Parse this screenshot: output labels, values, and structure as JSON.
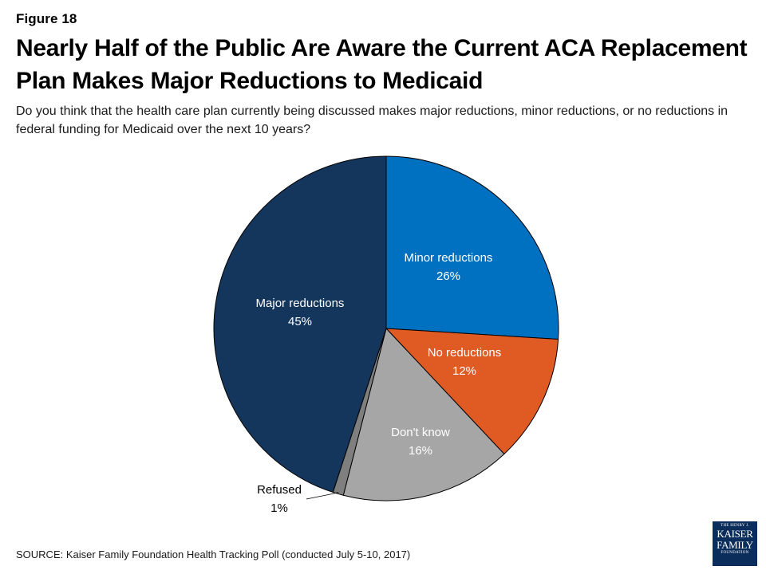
{
  "figure_label": "Figure 18",
  "title": "Nearly Half of the Public Are Aware the Current ACA Replacement Plan Makes Major Reductions to Medicaid",
  "subtitle": "Do you think that the health care plan currently being discussed makes major reductions, minor reductions, or no reductions in federal funding for Medicaid over the next 10 years?",
  "source": "SOURCE: Kaiser Family Foundation Health Tracking Poll (conducted July 5-10, 2017)",
  "logo": {
    "line1": "THE HENRY J.",
    "line2": "KAISER",
    "line3": "FAMILY",
    "line4": "FOUNDATION"
  },
  "colors": {
    "minor": "#0070c0",
    "no": "#e05a24",
    "dontknow": "#a6a6a6",
    "refused": "#7f7f7f",
    "major": "#14365d"
  },
  "chart_data": {
    "type": "pie",
    "start": "12 o'clock",
    "direction": "clockwise",
    "slices": [
      {
        "key": "minor",
        "label": "Minor reductions",
        "value": 26,
        "value_label": "26%",
        "color": "#0070c0"
      },
      {
        "key": "no",
        "label": "No reductions",
        "value": 12,
        "value_label": "12%",
        "color": "#e05a24"
      },
      {
        "key": "dontknow",
        "label": "Don't know",
        "value": 16,
        "value_label": "16%",
        "color": "#a6a6a6"
      },
      {
        "key": "refused",
        "label": "Refused",
        "value": 1,
        "value_label": "1%",
        "color": "#7f7f7f"
      },
      {
        "key": "major",
        "label": "Major reductions",
        "value": 45,
        "value_label": "45%",
        "color": "#14365d"
      }
    ]
  }
}
